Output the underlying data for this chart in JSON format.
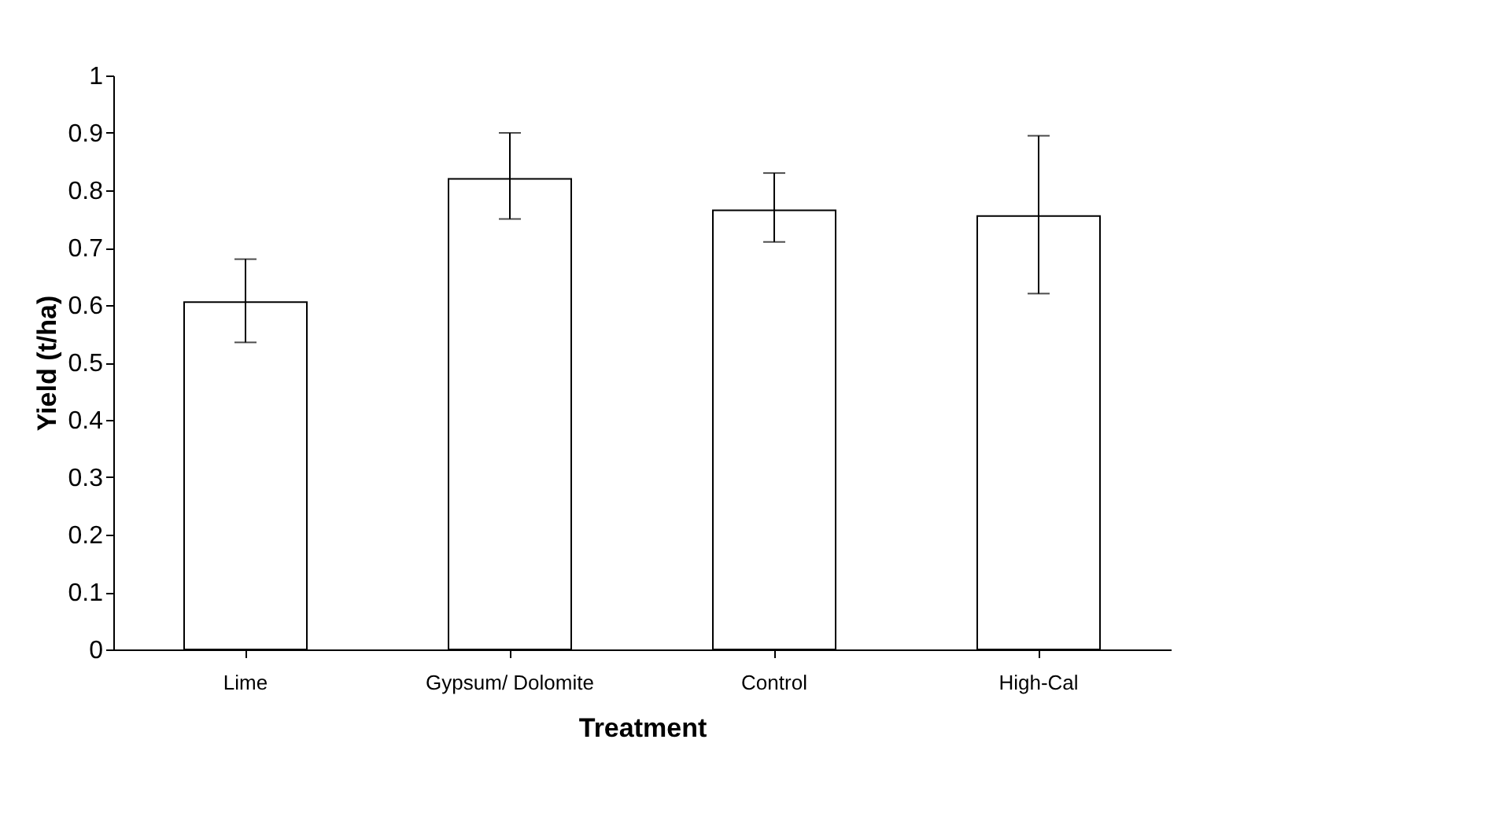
{
  "chart_data": {
    "type": "bar",
    "xlabel": "Treatment",
    "ylabel": "Yield (t/ha)",
    "categories": [
      "Lime",
      "Gypsum/ Dolomite",
      "Control",
      "High-Cal"
    ],
    "values": [
      0.605,
      0.82,
      0.765,
      0.755
    ],
    "errors": [
      [
        0.535,
        0.68
      ],
      [
        0.75,
        0.9
      ],
      [
        0.71,
        0.83
      ],
      [
        0.62,
        0.895
      ]
    ],
    "color": "#ffffff",
    "ylim": [
      0,
      1
    ],
    "yticks": [
      0,
      0.1,
      0.2,
      0.3,
      0.4,
      0.5,
      0.6,
      0.7,
      0.8,
      0.9,
      1
    ],
    "grid": false
  }
}
